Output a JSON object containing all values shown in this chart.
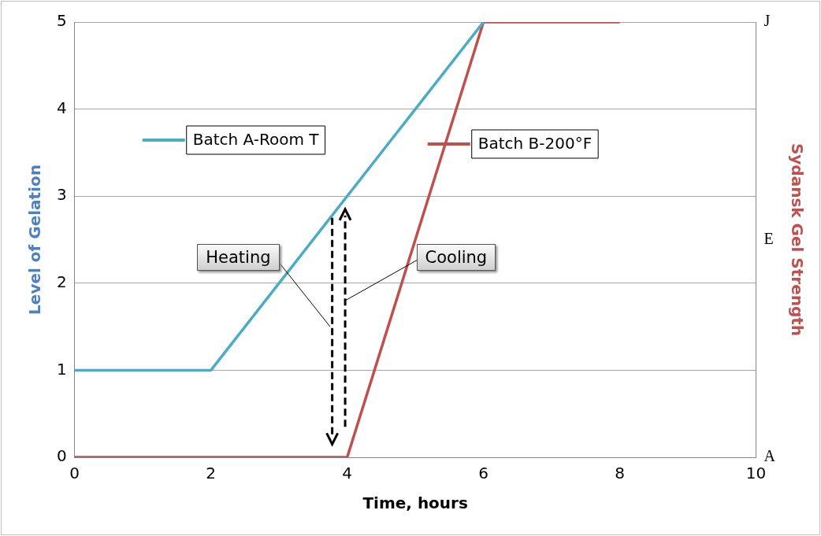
{
  "chart_data": {
    "type": "line",
    "xlabel": "Time, hours",
    "ylabel": "Level of Gelation",
    "y2label": "Sydansk Gel Strength",
    "xlim": [
      0,
      10
    ],
    "xticks": [
      0,
      2,
      4,
      6,
      8,
      10
    ],
    "ylim": [
      0,
      5
    ],
    "yticks": [
      0,
      1,
      2,
      3,
      4,
      5
    ],
    "y2_categories": [
      "J",
      "E",
      "A"
    ],
    "series": [
      {
        "name": "Batch A-Room T",
        "color": "#4bacc6",
        "x": [
          0,
          2,
          6
        ],
        "values": [
          1,
          1,
          5
        ]
      },
      {
        "name": "Batch B-200°F",
        "color": "#c0504d",
        "x": [
          0,
          4,
          6,
          8
        ],
        "values": [
          0,
          0,
          5,
          5
        ]
      }
    ],
    "annotations": [
      "Heating",
      "Cooling"
    ],
    "grid": "y",
    "legend": "top",
    "marker": "none",
    "line_style": "solid"
  }
}
